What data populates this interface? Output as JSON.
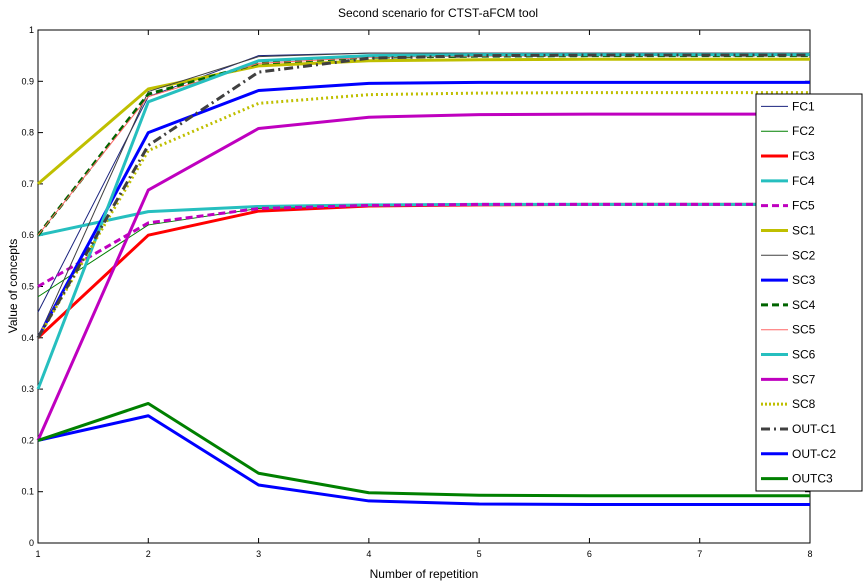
{
  "chart_data": {
    "type": "line",
    "title": "Second scenario for CTST-aFCM tool",
    "xlabel": "Number of repetition",
    "ylabel": "Value of concepts",
    "xlim": [
      1,
      8
    ],
    "ylim": [
      0,
      1
    ],
    "x": [
      1,
      2,
      3,
      4,
      5,
      6,
      7,
      8
    ],
    "x_tick_labels": [
      "1",
      "2",
      "3",
      "4",
      "5",
      "6",
      "7",
      "8"
    ],
    "y_ticks": [
      0,
      0.1,
      0.2,
      0.3,
      0.4,
      0.5,
      0.6,
      0.7,
      0.8,
      0.9,
      1
    ],
    "y_tick_labels": [
      "0",
      "0.1",
      "0.2",
      "0.3",
      "0.4",
      "0.5",
      "0.6",
      "0.7",
      "0.8",
      "0.9",
      "1"
    ],
    "grid": false,
    "legend_position": "right",
    "series": [
      {
        "name": "FC1",
        "color": "#1a237e",
        "style": "solid",
        "width": 1,
        "values": [
          0.45,
          0.87,
          0.95,
          0.955,
          0.955,
          0.955,
          0.955,
          0.955
        ]
      },
      {
        "name": "FC2",
        "color": "#008000",
        "style": "solid",
        "width": 1,
        "values": [
          0.48,
          0.62,
          0.652,
          0.658,
          0.66,
          0.66,
          0.66,
          0.66
        ]
      },
      {
        "name": "FC3",
        "color": "#ff0000",
        "style": "solid",
        "width": 3,
        "values": [
          0.4,
          0.6,
          0.647,
          0.657,
          0.659,
          0.66,
          0.66,
          0.66
        ]
      },
      {
        "name": "FC4",
        "color": "#26bfbf",
        "style": "solid",
        "width": 3,
        "values": [
          0.6,
          0.646,
          0.656,
          0.659,
          0.66,
          0.66,
          0.66,
          0.66
        ]
      },
      {
        "name": "FC5",
        "color": "#bf00bf",
        "style": "dashed",
        "width": 3,
        "values": [
          0.5,
          0.624,
          0.652,
          0.658,
          0.66,
          0.66,
          0.66,
          0.66
        ]
      },
      {
        "name": "SC1",
        "color": "#bfbf00",
        "style": "solid",
        "width": 3,
        "values": [
          0.7,
          0.885,
          0.93,
          0.94,
          0.942,
          0.943,
          0.943,
          0.943
        ]
      },
      {
        "name": "SC2",
        "color": "#404040",
        "style": "solid",
        "width": 1,
        "values": [
          0.4,
          0.88,
          0.948,
          0.955,
          0.955,
          0.955,
          0.955,
          0.955
        ]
      },
      {
        "name": "SC3",
        "color": "#0000ff",
        "style": "solid",
        "width": 3,
        "values": [
          0.4,
          0.8,
          0.882,
          0.896,
          0.898,
          0.898,
          0.898,
          0.898
        ]
      },
      {
        "name": "SC4",
        "color": "#006400",
        "style": "dashed",
        "width": 3,
        "values": [
          0.6,
          0.875,
          0.935,
          0.947,
          0.949,
          0.95,
          0.95,
          0.95
        ]
      },
      {
        "name": "SC5",
        "color": "#ff6666",
        "style": "solid",
        "width": 1,
        "values": [
          0.6,
          0.87,
          0.935,
          0.947,
          0.949,
          0.95,
          0.95,
          0.95
        ]
      },
      {
        "name": "SC6",
        "color": "#26bfbf",
        "style": "solid",
        "width": 3,
        "values": [
          0.3,
          0.86,
          0.94,
          0.95,
          0.952,
          0.952,
          0.952,
          0.952
        ]
      },
      {
        "name": "SC7",
        "color": "#bf00bf",
        "style": "solid",
        "width": 3,
        "values": [
          0.2,
          0.688,
          0.808,
          0.83,
          0.835,
          0.836,
          0.836,
          0.836
        ]
      },
      {
        "name": "SC8",
        "color": "#bfbf00",
        "style": "dotted",
        "width": 3,
        "values": [
          0.4,
          0.765,
          0.857,
          0.874,
          0.877,
          0.878,
          0.878,
          0.878
        ]
      },
      {
        "name": "OUT-C1",
        "color": "#404040",
        "style": "dashdot",
        "width": 3,
        "values": [
          0.4,
          0.775,
          0.918,
          0.945,
          0.95,
          0.951,
          0.951,
          0.951
        ]
      },
      {
        "name": "OUT-C2",
        "color": "#0000ff",
        "style": "solid",
        "width": 3,
        "values": [
          0.2,
          0.248,
          0.113,
          0.082,
          0.076,
          0.075,
          0.075,
          0.075
        ]
      },
      {
        "name": "OUTC3",
        "color": "#008000",
        "style": "solid",
        "width": 3,
        "values": [
          0.2,
          0.272,
          0.136,
          0.098,
          0.093,
          0.092,
          0.092,
          0.092
        ]
      }
    ]
  }
}
